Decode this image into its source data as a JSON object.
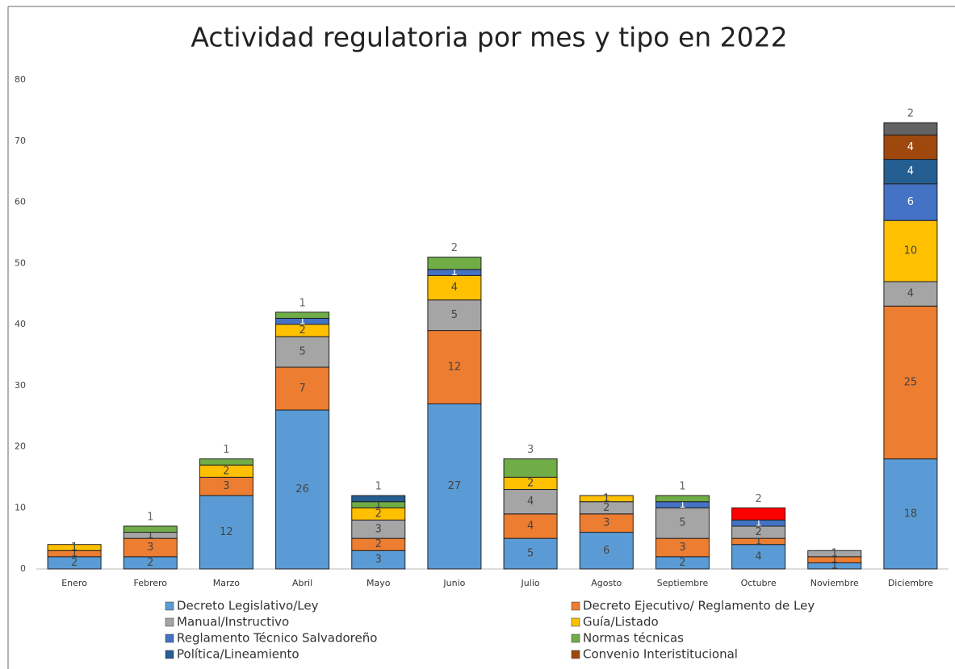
{
  "chart_data": {
    "type": "stacked_bar",
    "title": "Actividad regulatoria por mes y tipo en 2022",
    "categories": [
      "Enero",
      "Febrero",
      "Marzo",
      "Abril",
      "Mayo",
      "Junio",
      "Julio",
      "Agosto",
      "Septiembre",
      "Octubre",
      "Noviembre",
      "Diciembre"
    ],
    "series": [
      {
        "name": "Decreto Legislativo/Ley",
        "color": "#5b9bd5",
        "values": [
          2,
          2,
          12,
          26,
          3,
          27,
          5,
          6,
          2,
          4,
          1,
          18
        ]
      },
      {
        "name": "Decreto Ejecutivo/ Reglamento de Ley",
        "color": "#ed7d31",
        "values": [
          1,
          3,
          3,
          7,
          2,
          12,
          4,
          3,
          3,
          1,
          1,
          25
        ]
      },
      {
        "name": "Manual/Instructivo",
        "color": "#a5a5a5",
        "values": [
          null,
          1,
          null,
          5,
          3,
          5,
          4,
          2,
          5,
          2,
          1,
          4
        ]
      },
      {
        "name": "Guía/Listado",
        "color": "#ffc000",
        "values": [
          1,
          null,
          2,
          2,
          2,
          4,
          2,
          1,
          null,
          null,
          null,
          10
        ]
      },
      {
        "name": "Reglamento Técnico Salvadoreño",
        "color": "#4472c4",
        "values": [
          null,
          null,
          null,
          1,
          null,
          1,
          null,
          null,
          1,
          1,
          null,
          6
        ]
      },
      {
        "name": "Normas técnicas",
        "color": "#70ad47",
        "values": [
          null,
          1,
          1,
          1,
          1,
          2,
          3,
          null,
          1,
          null,
          null,
          null
        ]
      },
      {
        "name": "Política/Lineamiento",
        "color": "#255e91",
        "values": [
          null,
          null,
          null,
          null,
          1,
          null,
          null,
          null,
          null,
          null,
          null,
          4
        ]
      },
      {
        "name": "Convenio Interistitucional",
        "color": "#9e480e",
        "values": [
          null,
          null,
          null,
          null,
          null,
          null,
          null,
          null,
          null,
          null,
          null,
          4
        ]
      },
      {
        "color": "#ff0000",
        "values": [
          null,
          null,
          null,
          null,
          null,
          null,
          null,
          null,
          null,
          2,
          null,
          null
        ]
      },
      {
        "color": "#636363",
        "values": [
          null,
          null,
          null,
          null,
          null,
          null,
          null,
          null,
          null,
          null,
          null,
          2
        ]
      }
    ],
    "ylim": [
      0,
      80
    ],
    "yticks": [
      0,
      10,
      20,
      30,
      40,
      50,
      60,
      70,
      80
    ],
    "legend": "bottom"
  }
}
